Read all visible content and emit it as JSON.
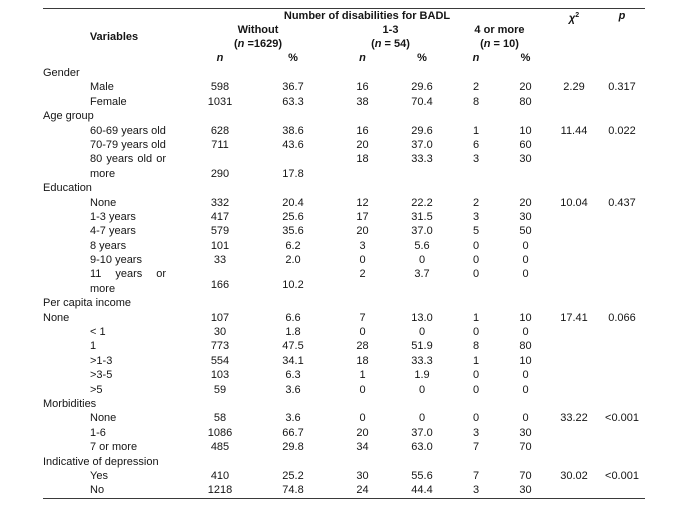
{
  "page": {
    "background": "#ffffff",
    "text_color": "#151515",
    "rule_color": "#3a3a3a"
  },
  "table": {
    "title_span": "Number of disabilities for BADL",
    "chi_header": {
      "base": "χ",
      "sup": "2"
    },
    "p_header": "p",
    "variables_header": "Variables",
    "groups": [
      {
        "label": "Without",
        "n_label": "(n =1629)"
      },
      {
        "label": "1-3",
        "n_label": "(n = 54)"
      },
      {
        "label": "4 or more",
        "n_label": "(n = 10)"
      }
    ],
    "subheaders": [
      "n",
      "%",
      "n",
      "%",
      "n",
      "%"
    ],
    "sections": [
      {
        "title": "Gender",
        "rows": [
          {
            "label": "Male",
            "indent": 1,
            "cells": [
              "598",
              "36.7",
              "16",
              "29.6",
              "2",
              "20"
            ],
            "chi": "2.29",
            "p": "0.317"
          },
          {
            "label": "Female",
            "indent": 1,
            "cells": [
              "1031",
              "63.3",
              "38",
              "70.4",
              "8",
              "80"
            ]
          }
        ]
      },
      {
        "title": "Age group",
        "rows": [
          {
            "label": "60-69 years old",
            "indent": 1,
            "cells": [
              "628",
              "38.6",
              "16",
              "29.6",
              "1",
              "10"
            ],
            "chi": "11.44",
            "p": "0.022"
          },
          {
            "label": "70-79 years old",
            "indent": 1,
            "cells": [
              "711",
              "43.6",
              "20",
              "37.0",
              "6",
              "60"
            ]
          },
          {
            "label_lines": [
              "80 years old or",
              "more"
            ],
            "indent": 1,
            "justify_first": true,
            "line1_cells": [
              "",
              "",
              "18",
              "33.3",
              "3",
              "30"
            ],
            "line2_cells": [
              "290",
              "17.8",
              "",
              "",
              "",
              ""
            ]
          }
        ]
      },
      {
        "title": "Education",
        "rows": [
          {
            "label": "None",
            "indent": 1,
            "cells": [
              "332",
              "20.4",
              "12",
              "22.2",
              "2",
              "20"
            ],
            "chi": "10.04",
            "p": "0.437"
          },
          {
            "label": "1-3 years",
            "indent": 1,
            "cells": [
              "417",
              "25.6",
              "17",
              "31.5",
              "3",
              "30"
            ]
          },
          {
            "label": "4-7 years",
            "indent": 1,
            "cells": [
              "579",
              "35.6",
              "20",
              "37.0",
              "5",
              "50"
            ]
          },
          {
            "label": "8 years",
            "indent": 1,
            "cells": [
              "101",
              "6.2",
              "3",
              "5.6",
              "0",
              "0"
            ]
          },
          {
            "label": "9-10 years",
            "indent": 1,
            "cells": [
              "33",
              "2.0",
              "0",
              "0",
              "0",
              "0"
            ]
          },
          {
            "label_lines": [
              "11 years or",
              "more"
            ],
            "indent": 1,
            "justify_first": true,
            "raise_line2": true,
            "line1_cells": [
              "",
              "",
              "2",
              "3.7",
              "0",
              "0"
            ],
            "line2_cells": [
              "166",
              "10.2",
              "",
              "",
              "",
              ""
            ]
          }
        ]
      },
      {
        "title": "Per capita income",
        "rows": [
          {
            "label": "None",
            "indent": 0,
            "cells": [
              "107",
              "6.6",
              "7",
              "13.0",
              "1",
              "10"
            ],
            "chi": "17.41",
            "p": "0.066"
          },
          {
            "label": "< 1",
            "indent": 1,
            "cells": [
              "30",
              "1.8",
              "0",
              "0",
              "0",
              "0"
            ]
          },
          {
            "label": "1",
            "indent": 1,
            "cells": [
              "773",
              "47.5",
              "28",
              "51.9",
              "8",
              "80"
            ]
          },
          {
            "label": ">1-3",
            "indent": 1,
            "cells": [
              "554",
              "34.1",
              "18",
              "33.3",
              "1",
              "10"
            ]
          },
          {
            "label": ">3-5",
            "indent": 1,
            "cells": [
              "103",
              "6.3",
              "1",
              "1.9",
              "0",
              "0"
            ]
          },
          {
            "label": ">5",
            "indent": 1,
            "cells": [
              "59",
              "3.6",
              "0",
              "0",
              "0",
              "0"
            ]
          }
        ]
      },
      {
        "title": "Morbidities",
        "rows": [
          {
            "label": "None",
            "indent": 1,
            "cells": [
              "58",
              "3.6",
              "0",
              "0",
              "0",
              "0"
            ],
            "chi": "33.22",
            "p": "<0.001"
          },
          {
            "label": "1-6",
            "indent": 1,
            "cells": [
              "1086",
              "66.7",
              "20",
              "37.0",
              "3",
              "30"
            ]
          },
          {
            "label": "7 or more",
            "indent": 1,
            "cells": [
              "485",
              "29.8",
              "34",
              "63.0",
              "7",
              "70"
            ]
          }
        ]
      },
      {
        "title": "Indicative of depression",
        "rows": [
          {
            "label": "Yes",
            "indent": 1,
            "cells": [
              "410",
              "25.2",
              "30",
              "55.6",
              "7",
              "70"
            ],
            "chi": "30.02",
            "p": "<0.001"
          },
          {
            "label": "No",
            "indent": 1,
            "cells": [
              "1218",
              "74.8",
              "24",
              "44.4",
              "3",
              "30"
            ]
          }
        ]
      }
    ]
  }
}
